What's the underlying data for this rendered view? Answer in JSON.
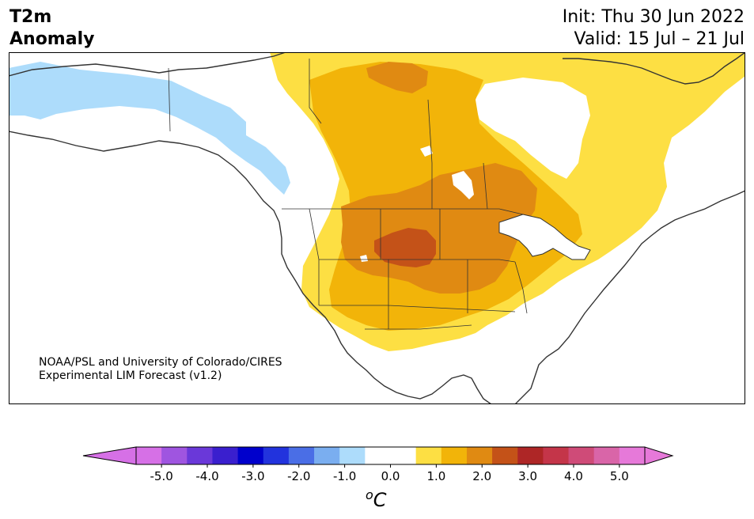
{
  "header": {
    "title_line1": "T2m",
    "title_line2": "Anomaly",
    "init_text": "Init: Thu 30 Jun 2022",
    "valid_text": "Valid: 15 Jul – 21 Jul"
  },
  "credit": {
    "line1": "NOAA/PSL and University of Colorado/CIRES",
    "line2": "Experimental LIM Forecast (v1.2)"
  },
  "colorbar": {
    "tick_labels": [
      "-5.0",
      "-4.0",
      "-3.0",
      "-2.0",
      "-1.0",
      "0.0",
      "1.0",
      "2.0",
      "3.0",
      "4.0",
      "5.0"
    ],
    "colors": [
      "#d670e6",
      "#9f55e0",
      "#6a38d9",
      "#3a1fce",
      "#0000cc",
      "#2233dd",
      "#4a6ee6",
      "#7aaef0",
      "#addcfb",
      "#ffffff",
      "#ffffff",
      "#fddf43",
      "#f2b409",
      "#e08a12",
      "#c45218",
      "#ae2626",
      "#c43549",
      "#cf4b78",
      "#d965a8",
      "#e679d9"
    ],
    "under_color": "#d670e6",
    "over_color": "#e679d9",
    "unit_label": "oC"
  },
  "map_colors": {
    "light_blue": "#addcfb",
    "yellow": "#fddf43",
    "gold": "#f2b409",
    "orange": "#e08a12",
    "rust": "#c45218",
    "coast": "#333333"
  }
}
